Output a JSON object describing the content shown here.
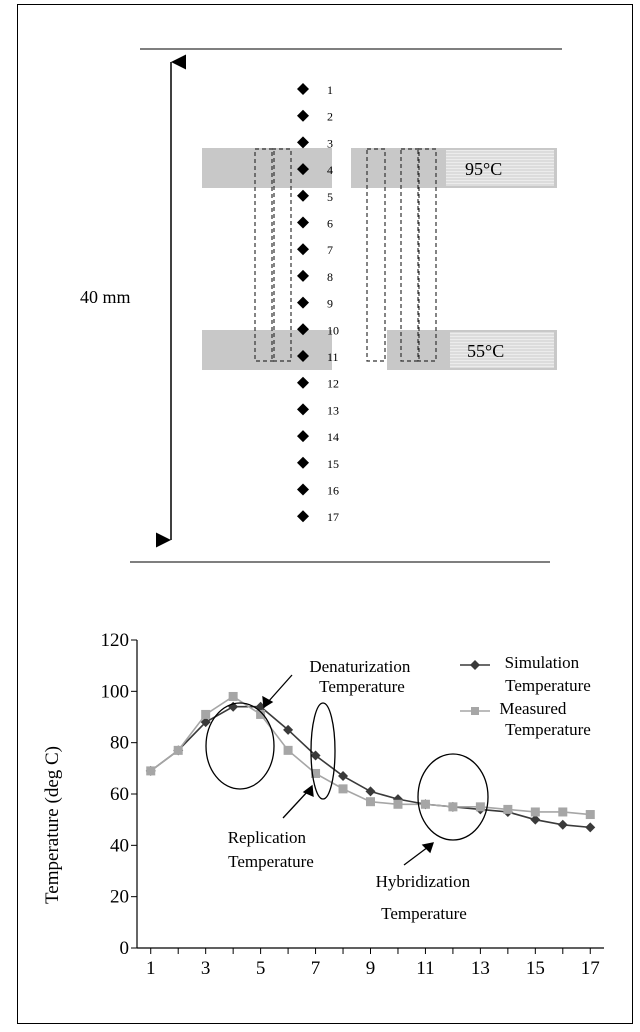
{
  "diagram": {
    "dimension_label": "40 mm",
    "zone_hot_label": "95°C",
    "zone_cold_label": "55°C",
    "point_labels": [
      "1",
      "2",
      "3",
      "4",
      "5",
      "6",
      "7",
      "8",
      "9",
      "10",
      "11",
      "12",
      "13",
      "14",
      "15",
      "16",
      "17"
    ]
  },
  "chart_data": {
    "type": "line",
    "title": "",
    "xlabel": "",
    "ylabel": "Temperature (deg C)",
    "xlim": [
      0.5,
      17.5
    ],
    "ylim": [
      0,
      120
    ],
    "xticks": [
      1,
      3,
      5,
      7,
      9,
      11,
      13,
      15,
      17
    ],
    "yticks": [
      0,
      20,
      40,
      60,
      80,
      100,
      120
    ],
    "grid": false,
    "legend_position": "top-right",
    "x": [
      1,
      2,
      3,
      4,
      5,
      6,
      7,
      8,
      9,
      10,
      11,
      12,
      13,
      14,
      15,
      16,
      17
    ],
    "series": [
      {
        "name": "Simulation Temperature",
        "marker": "diamond",
        "color": "#3a3a3a",
        "values": [
          69,
          77,
          88,
          94,
          94,
          85,
          75,
          67,
          61,
          58,
          56,
          55,
          54,
          53,
          50,
          48,
          47
        ]
      },
      {
        "name": "Measured Temperature",
        "marker": "square",
        "color": "#a6a6a6",
        "values": [
          69,
          77,
          91,
          98,
          91,
          77,
          68,
          62,
          57,
          56,
          56,
          55,
          55,
          54,
          53,
          53,
          52
        ]
      }
    ],
    "legend": [
      {
        "line1": "Simulation",
        "line2": "Temperature"
      },
      {
        "line1": "Measured",
        "line2": "Temperature"
      }
    ],
    "annotations": [
      {
        "line1": "Denaturization",
        "line2": "Temperature"
      },
      {
        "line1": "Replication",
        "line2": "Temperature"
      },
      {
        "line1": "Hybridization",
        "line2": "Temperature"
      }
    ]
  }
}
